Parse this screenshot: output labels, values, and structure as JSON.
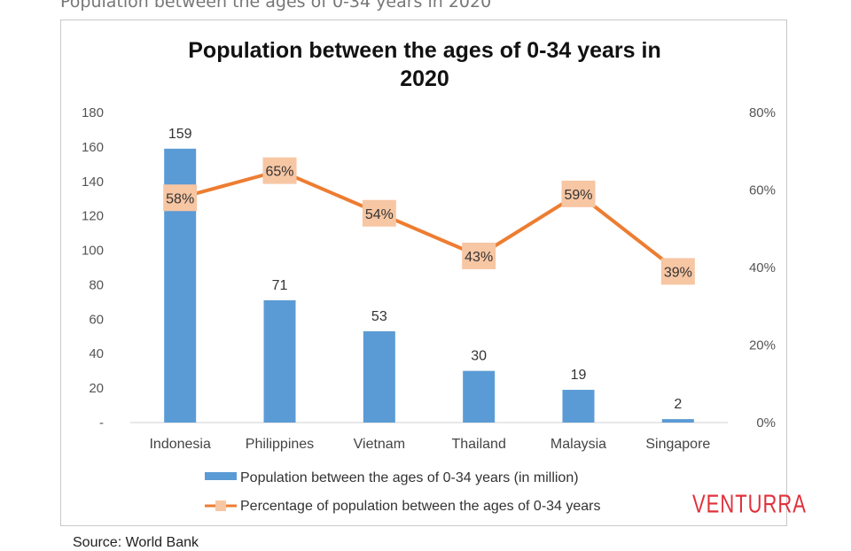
{
  "page": {
    "heading": "Population between the ages of 0-34 years in 2020",
    "source": "Source: World Bank",
    "brand": "VENTURRA"
  },
  "colors": {
    "bar": "#5b9bd5",
    "line": "#ed7d31",
    "marker": "#f7c6a3",
    "brand": "#e0303a"
  },
  "chart_data": {
    "type": "bar",
    "title_lines": [
      "Population between the ages of 0-34 years in",
      "2020"
    ],
    "categories": [
      "Indonesia",
      "Philippines",
      "Vietnam",
      "Thailand",
      "Malaysia",
      "Singapore"
    ],
    "series": [
      {
        "name": "Population between the ages of 0-34 years (in million)",
        "type": "bar",
        "axis": "left",
        "values": [
          159,
          71,
          53,
          30,
          19,
          2
        ],
        "labels": [
          "159",
          "71",
          "53",
          "30",
          "19",
          "2"
        ]
      },
      {
        "name": "Percentage of population between the ages of 0-34 years",
        "type": "line",
        "axis": "right",
        "values": [
          58,
          65,
          54,
          43,
          59,
          39
        ],
        "labels": [
          "58%",
          "65%",
          "54%",
          "43%",
          "59%",
          "39%"
        ]
      }
    ],
    "y_left": {
      "ylim": [
        0,
        180
      ],
      "ticks": [
        0,
        20,
        40,
        60,
        80,
        100,
        120,
        140,
        160,
        180
      ],
      "tick_labels": [
        "-",
        "20",
        "40",
        "60",
        "80",
        "100",
        "120",
        "140",
        "160",
        "180"
      ]
    },
    "y_right": {
      "ylim": [
        0,
        80
      ],
      "ticks": [
        0,
        20,
        40,
        60,
        80
      ],
      "tick_labels": [
        "0%",
        "20%",
        "40%",
        "60%",
        "80%"
      ]
    },
    "grid": false,
    "legend_position": "bottom"
  }
}
